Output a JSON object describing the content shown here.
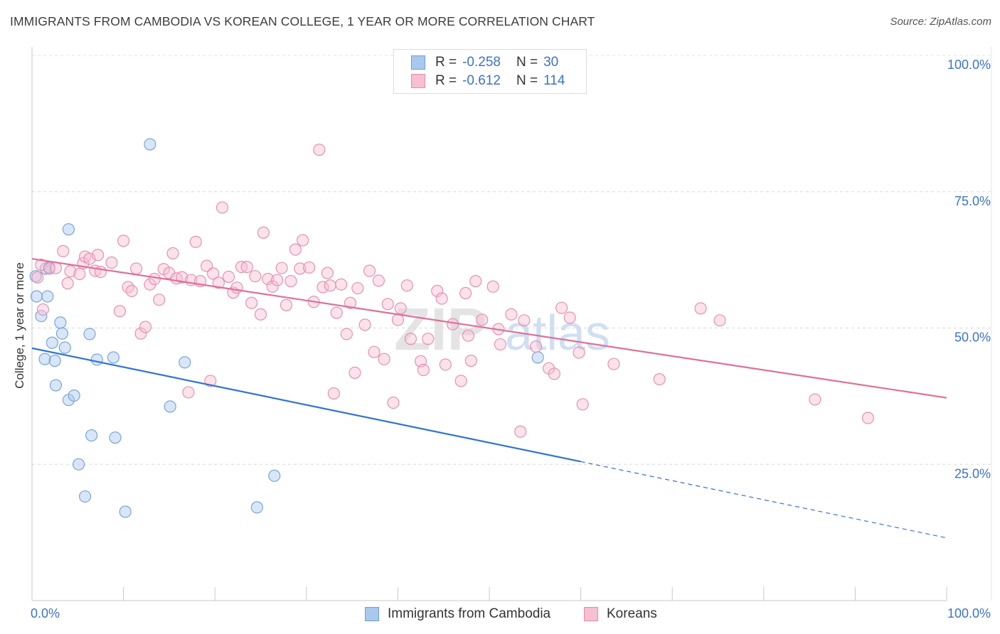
{
  "title": "IMMIGRANTS FROM CAMBODIA VS KOREAN COLLEGE, 1 YEAR OR MORE CORRELATION CHART",
  "source": "Source: ZipAtlas.com",
  "watermark": "ZIPatlas",
  "legend": {
    "rows": [
      {
        "r_label": "R =",
        "r_value": "-0.258",
        "n_label": "N =",
        "n_value": "30",
        "color": "#a9c8ee",
        "border": "#6f9fd8"
      },
      {
        "r_label": "R =",
        "r_value": "-0.612",
        "n_label": "N =",
        "n_value": "114",
        "color": "#f7bfd2",
        "border": "#e58aab"
      }
    ]
  },
  "bottom_legend": [
    {
      "label": "Immigrants from Cambodia",
      "color": "#a9c8ee",
      "border": "#6f9fd8"
    },
    {
      "label": "Koreans",
      "color": "#f7bfd2",
      "border": "#e58aab"
    }
  ],
  "chart_data": {
    "type": "scatter",
    "title": "IMMIGRANTS FROM CAMBODIA VS KOREAN COLLEGE, 1 YEAR OR MORE CORRELATION CHART",
    "xlabel": "",
    "ylabel": "College, 1 year or more",
    "xlim": [
      0,
      100
    ],
    "ylim": [
      0,
      100
    ],
    "x_tick_labels": [
      "0.0%",
      "100.0%"
    ],
    "y_ticks": [
      25,
      50,
      75,
      100
    ],
    "y_tick_labels": [
      "25.0%",
      "50.0%",
      "75.0%",
      "100.0%"
    ],
    "grid": true,
    "legend_position": "top-center",
    "series": [
      {
        "name": "Immigrants from Cambodia",
        "color": "#6f9fd8",
        "fill": "#a9c8ee",
        "trend_color": "#2f74d0",
        "trend": {
          "x0": 0,
          "y0": 46.3,
          "x1": 60,
          "y1": 25.5,
          "dashed_to": 100,
          "dashed_end_y": 11.5
        },
        "points": [
          [
            0.5,
            55.8
          ],
          [
            1.0,
            52.2
          ],
          [
            1.5,
            60.9
          ],
          [
            1.7,
            55.8
          ],
          [
            1.9,
            61.1
          ],
          [
            2.2,
            47.3
          ],
          [
            1.4,
            44.3
          ],
          [
            2.5,
            44.0
          ],
          [
            2.6,
            39.5
          ],
          [
            3.1,
            51.0
          ],
          [
            3.3,
            49.0
          ],
          [
            3.6,
            46.4
          ],
          [
            4.0,
            36.8
          ],
          [
            4.6,
            37.6
          ],
          [
            4.0,
            68.1
          ],
          [
            6.3,
            48.9
          ],
          [
            5.1,
            25.0
          ],
          [
            6.5,
            30.3
          ],
          [
            5.8,
            19.1
          ],
          [
            7.1,
            44.2
          ],
          [
            8.9,
            44.6
          ],
          [
            9.1,
            29.9
          ],
          [
            10.2,
            16.3
          ],
          [
            12.9,
            83.7
          ],
          [
            15.1,
            35.6
          ],
          [
            16.7,
            43.7
          ],
          [
            24.6,
            17.1
          ],
          [
            26.5,
            22.9
          ],
          [
            55.3,
            44.6
          ],
          [
            0.4,
            59.5
          ]
        ]
      },
      {
        "name": "Koreans",
        "color": "#e58aab",
        "fill": "#f7bfd2",
        "trend_color": "#e06f98",
        "trend": {
          "x0": 0,
          "y0": 62.7,
          "x1": 100,
          "y1": 37.2
        },
        "points": [
          [
            0.6,
            59.3
          ],
          [
            1.0,
            61.6
          ],
          [
            1.2,
            53.4
          ],
          [
            1.9,
            60.9
          ],
          [
            2.6,
            61.0
          ],
          [
            3.4,
            64.1
          ],
          [
            3.9,
            58.2
          ],
          [
            4.2,
            60.4
          ],
          [
            5.2,
            59.9
          ],
          [
            5.6,
            61.9
          ],
          [
            5.8,
            63.1
          ],
          [
            6.3,
            62.7
          ],
          [
            6.9,
            60.5
          ],
          [
            7.2,
            63.4
          ],
          [
            7.5,
            60.3
          ],
          [
            8.7,
            62.0
          ],
          [
            9.6,
            53.1
          ],
          [
            10.0,
            66.0
          ],
          [
            10.5,
            57.5
          ],
          [
            10.9,
            56.8
          ],
          [
            11.4,
            60.9
          ],
          [
            11.9,
            49.0
          ],
          [
            12.4,
            50.2
          ],
          [
            12.9,
            58.0
          ],
          [
            13.4,
            59.0
          ],
          [
            13.9,
            55.2
          ],
          [
            14.4,
            60.8
          ],
          [
            15.0,
            60.1
          ],
          [
            15.4,
            63.7
          ],
          [
            15.8,
            59.1
          ],
          [
            16.4,
            59.3
          ],
          [
            17.1,
            38.2
          ],
          [
            17.4,
            58.8
          ],
          [
            17.9,
            65.8
          ],
          [
            18.4,
            58.6
          ],
          [
            19.1,
            61.4
          ],
          [
            19.5,
            40.3
          ],
          [
            19.8,
            60.0
          ],
          [
            20.4,
            58.3
          ],
          [
            20.8,
            72.1
          ],
          [
            21.5,
            59.4
          ],
          [
            22.0,
            56.5
          ],
          [
            22.4,
            57.4
          ],
          [
            22.9,
            61.2
          ],
          [
            23.5,
            61.2
          ],
          [
            24.0,
            54.6
          ],
          [
            24.4,
            59.5
          ],
          [
            25.0,
            52.5
          ],
          [
            25.3,
            67.5
          ],
          [
            25.8,
            59.0
          ],
          [
            26.3,
            57.6
          ],
          [
            26.8,
            58.8
          ],
          [
            27.3,
            61.0
          ],
          [
            27.8,
            54.2
          ],
          [
            28.3,
            58.6
          ],
          [
            28.8,
            64.4
          ],
          [
            29.3,
            60.9
          ],
          [
            29.6,
            66.1
          ],
          [
            30.3,
            61.1
          ],
          [
            30.8,
            54.8
          ],
          [
            31.4,
            82.7
          ],
          [
            31.8,
            57.5
          ],
          [
            32.3,
            60.1
          ],
          [
            32.6,
            57.8
          ],
          [
            33.3,
            52.8
          ],
          [
            33.8,
            58.0
          ],
          [
            34.4,
            48.9
          ],
          [
            34.8,
            54.6
          ],
          [
            35.3,
            41.8
          ],
          [
            35.6,
            57.3
          ],
          [
            36.4,
            50.6
          ],
          [
            36.9,
            60.5
          ],
          [
            37.4,
            45.6
          ],
          [
            37.9,
            58.7
          ],
          [
            38.5,
            44.3
          ],
          [
            38.9,
            54.4
          ],
          [
            39.5,
            36.3
          ],
          [
            40.0,
            51.5
          ],
          [
            40.3,
            53.6
          ],
          [
            41.0,
            57.8
          ],
          [
            41.4,
            48.0
          ],
          [
            42.5,
            43.9
          ],
          [
            42.8,
            42.3
          ],
          [
            43.3,
            48.0
          ],
          [
            44.3,
            56.8
          ],
          [
            44.8,
            55.4
          ],
          [
            45.2,
            43.3
          ],
          [
            46.0,
            50.7
          ],
          [
            46.9,
            40.3
          ],
          [
            47.4,
            56.4
          ],
          [
            47.7,
            48.6
          ],
          [
            48.5,
            58.6
          ],
          [
            49.2,
            51.5
          ],
          [
            50.4,
            57.6
          ],
          [
            51.0,
            49.8
          ],
          [
            51.2,
            47.0
          ],
          [
            52.4,
            52.5
          ],
          [
            53.4,
            31.0
          ],
          [
            53.8,
            51.4
          ],
          [
            55.1,
            46.6
          ],
          [
            56.5,
            42.6
          ],
          [
            57.1,
            41.6
          ],
          [
            57.9,
            53.7
          ],
          [
            58.8,
            51.9
          ],
          [
            59.8,
            45.5
          ],
          [
            60.2,
            36.0
          ],
          [
            63.6,
            43.4
          ],
          [
            68.6,
            40.6
          ],
          [
            73.1,
            53.6
          ],
          [
            75.2,
            51.4
          ],
          [
            85.6,
            36.9
          ],
          [
            91.4,
            33.5
          ],
          [
            33.0,
            38.0
          ],
          [
            48.0,
            44.0
          ]
        ]
      }
    ]
  }
}
